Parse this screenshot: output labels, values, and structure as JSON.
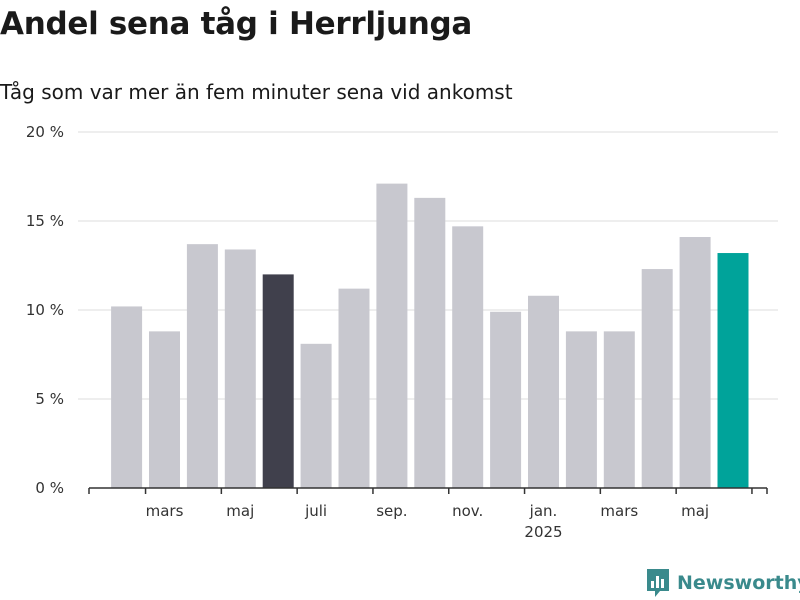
{
  "title": "Andel sena tåg i Herrljunga",
  "subtitle": "Tåg som var mer än fem minuter sena vid ankomst",
  "brand": "Newsworthy",
  "colors": {
    "default_bar": "#c8c8cf",
    "highlight_dark": "#40404c",
    "highlight_accent": "#00a39a",
    "grid": "#dddddd",
    "axis": "#333333"
  },
  "chart_data": {
    "type": "bar",
    "title": "Andel sena tåg i Herrljunga",
    "subtitle": "Tåg som var mer än fem minuter sena vid ankomst",
    "xlabel": "",
    "ylabel": "",
    "y_unit": "%",
    "ylim": [
      0,
      20
    ],
    "y_ticks": [
      0,
      5,
      10,
      15,
      20
    ],
    "y_tick_labels": [
      "0 %",
      "5 %",
      "10 %",
      "15 %",
      "20 %"
    ],
    "grid": true,
    "x": [
      "2024-02",
      "2024-03",
      "2024-04",
      "2024-05",
      "2024-06",
      "2024-07",
      "2024-08",
      "2024-09",
      "2024-10",
      "2024-11",
      "2024-12",
      "2025-01",
      "2025-02",
      "2025-03",
      "2025-04",
      "2025-05",
      "2025-06"
    ],
    "values": [
      10.2,
      8.8,
      13.7,
      13.4,
      12.0,
      8.1,
      11.2,
      17.1,
      16.3,
      14.7,
      9.9,
      10.8,
      8.8,
      8.8,
      12.3,
      14.1,
      13.2
    ],
    "bar_colors": [
      "default",
      "default",
      "default",
      "default",
      "highlight_dark",
      "default",
      "default",
      "default",
      "default",
      "default",
      "default",
      "default",
      "default",
      "default",
      "default",
      "default",
      "highlight_accent"
    ],
    "x_tick_labels": [
      {
        "bar_index": 1,
        "label": "mars"
      },
      {
        "bar_index": 3,
        "label": "maj"
      },
      {
        "bar_index": 5,
        "label": "juli"
      },
      {
        "bar_index": 7,
        "label": "sep."
      },
      {
        "bar_index": 9,
        "label": "nov."
      },
      {
        "bar_index": 11,
        "label": "jan.",
        "sublabel": "2025"
      },
      {
        "bar_index": 13,
        "label": "mars"
      },
      {
        "bar_index": 15,
        "label": "maj"
      }
    ]
  }
}
